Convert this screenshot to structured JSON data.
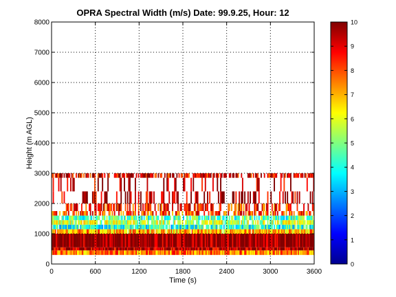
{
  "chart_data": {
    "type": "heatmap",
    "title": "OPRA Spectral Width (m/s)  Date: 99.9.25, Hour: 12",
    "xlabel": "Time (s)",
    "ylabel": "Height (m AGL)",
    "xlim": [
      0,
      3600
    ],
    "ylim": [
      0,
      8000
    ],
    "x_ticks": [
      "0",
      "600",
      "1200",
      "1800",
      "2400",
      "3000",
      "3600"
    ],
    "y_ticks": [
      "0",
      "1000",
      "2000",
      "3000",
      "4000",
      "5000",
      "6000",
      "7000",
      "8000"
    ],
    "colorbar": {
      "min": 0,
      "max": 10,
      "ticks": [
        "0",
        "1",
        "2",
        "3",
        "4",
        "5",
        "6",
        "7",
        "8",
        "9",
        "10"
      ],
      "colormap": "jet"
    },
    "grid": true,
    "height_layers": [
      {
        "bottom": 300,
        "top": 450,
        "value": 7.5,
        "coverage": 1.0
      },
      {
        "bottom": 450,
        "top": 550,
        "value": 9.5,
        "coverage": 1.0
      },
      {
        "bottom": 550,
        "top": 1000,
        "value": 10.0,
        "coverage": 1.0
      },
      {
        "bottom": 1000,
        "top": 1150,
        "value": 7.0,
        "coverage": 0.95
      },
      {
        "bottom": 1150,
        "top": 1300,
        "value": 4.0,
        "coverage": 0.9
      },
      {
        "bottom": 1300,
        "top": 1450,
        "value": 5.5,
        "coverage": 0.85
      },
      {
        "bottom": 1450,
        "top": 1600,
        "value": 4.5,
        "coverage": 0.75
      },
      {
        "bottom": 1600,
        "top": 1750,
        "value": 8.0,
        "coverage": 0.6
      },
      {
        "bottom": 1750,
        "top": 2000,
        "value": 8.5,
        "coverage": 0.45
      },
      {
        "bottom": 2000,
        "top": 2400,
        "value": 9.5,
        "coverage": 0.3
      },
      {
        "bottom": 2400,
        "top": 2850,
        "value": 9.5,
        "coverage": 0.18
      },
      {
        "bottom": 2850,
        "top": 3000,
        "value": 9.0,
        "coverage": 0.7
      }
    ]
  }
}
